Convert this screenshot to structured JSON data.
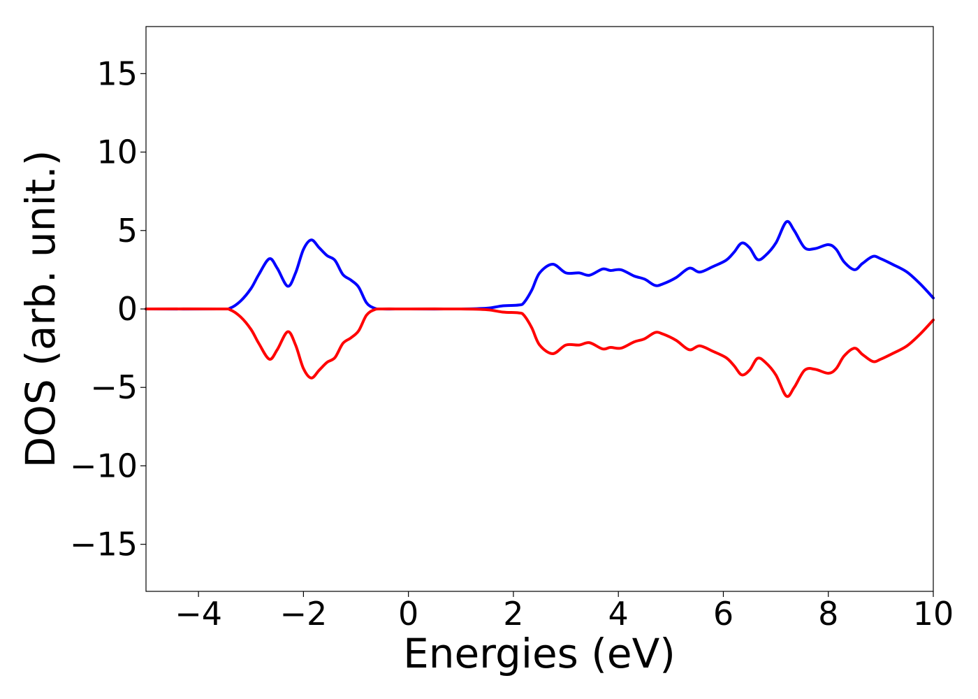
{
  "chart_data": {
    "type": "line",
    "xlabel": "Energies (eV)",
    "ylabel": "DOS (arb. unit.)",
    "xlim": [
      -5,
      10
    ],
    "ylim": [
      -18,
      18
    ],
    "x_ticks": [
      -4,
      -2,
      0,
      2,
      4,
      6,
      8,
      10
    ],
    "x_tick_labels": [
      "−4",
      "−2",
      "0",
      "2",
      "4",
      "6",
      "8",
      "10"
    ],
    "y_ticks": [
      15,
      10,
      5,
      0,
      -5,
      -10,
      -15
    ],
    "y_tick_labels": [
      "15",
      "10",
      "5",
      "0",
      "−5",
      "−10",
      "−15"
    ],
    "grid": false,
    "legend": "none",
    "series": [
      {
        "color": "#0000ff",
        "x": [
          -5.0,
          -3.6,
          -3.4,
          -3.2,
          -3.0,
          -2.85,
          -2.65,
          -2.5,
          -2.3,
          -2.15,
          -2.0,
          -1.85,
          -1.7,
          -1.55,
          -1.4,
          -1.25,
          -1.1,
          -0.95,
          -0.8,
          -0.65,
          -0.5,
          0.0,
          1.0,
          1.5,
          1.8,
          2.1,
          2.2,
          2.35,
          2.5,
          2.75,
          3.0,
          3.25,
          3.45,
          3.7,
          3.85,
          4.05,
          4.3,
          4.5,
          4.7,
          4.85,
          5.1,
          5.35,
          5.55,
          5.8,
          6.05,
          6.2,
          6.35,
          6.5,
          6.65,
          6.8,
          7.0,
          7.2,
          7.35,
          7.55,
          7.75,
          8.0,
          8.15,
          8.3,
          8.5,
          8.65,
          8.85,
          9.0,
          9.25,
          9.5,
          9.75,
          10.0
        ],
        "y": [
          0.0,
          0.0,
          0.05,
          0.5,
          1.3,
          2.2,
          3.2,
          2.6,
          1.45,
          2.3,
          3.8,
          4.4,
          3.9,
          3.4,
          3.1,
          2.2,
          1.85,
          1.4,
          0.4,
          0.05,
          0.0,
          0.0,
          0.0,
          0.05,
          0.2,
          0.25,
          0.4,
          1.2,
          2.3,
          2.85,
          2.3,
          2.3,
          2.15,
          2.55,
          2.45,
          2.5,
          2.1,
          1.9,
          1.5,
          1.6,
          2.0,
          2.6,
          2.35,
          2.7,
          3.1,
          3.6,
          4.2,
          3.9,
          3.15,
          3.4,
          4.2,
          5.55,
          5.0,
          3.9,
          3.85,
          4.1,
          3.8,
          3.0,
          2.5,
          2.9,
          3.35,
          3.2,
          2.8,
          2.35,
          1.6,
          0.7
        ]
      },
      {
        "color": "#ff0000",
        "x": [
          -5.0,
          -3.6,
          -3.4,
          -3.2,
          -3.0,
          -2.85,
          -2.65,
          -2.5,
          -2.3,
          -2.15,
          -2.0,
          -1.85,
          -1.7,
          -1.55,
          -1.4,
          -1.25,
          -1.1,
          -0.95,
          -0.8,
          -0.65,
          -0.5,
          0.0,
          1.0,
          1.5,
          1.8,
          2.1,
          2.2,
          2.35,
          2.5,
          2.75,
          3.0,
          3.25,
          3.45,
          3.7,
          3.85,
          4.05,
          4.3,
          4.5,
          4.7,
          4.85,
          5.1,
          5.35,
          5.55,
          5.8,
          6.05,
          6.2,
          6.35,
          6.5,
          6.65,
          6.8,
          7.0,
          7.2,
          7.35,
          7.55,
          7.75,
          8.0,
          8.15,
          8.3,
          8.5,
          8.65,
          8.85,
          9.0,
          9.25,
          9.5,
          9.75,
          10.0
        ],
        "y": [
          0.0,
          0.0,
          -0.05,
          -0.5,
          -1.3,
          -2.2,
          -3.2,
          -2.6,
          -1.45,
          -2.3,
          -3.8,
          -4.4,
          -3.9,
          -3.4,
          -3.1,
          -2.2,
          -1.85,
          -1.4,
          -0.4,
          -0.05,
          0.0,
          0.0,
          0.0,
          -0.05,
          -0.2,
          -0.25,
          -0.4,
          -1.2,
          -2.3,
          -2.85,
          -2.3,
          -2.3,
          -2.15,
          -2.55,
          -2.45,
          -2.5,
          -2.1,
          -1.9,
          -1.5,
          -1.6,
          -2.0,
          -2.6,
          -2.35,
          -2.7,
          -3.1,
          -3.6,
          -4.2,
          -3.9,
          -3.15,
          -3.4,
          -4.2,
          -5.55,
          -5.0,
          -3.9,
          -3.85,
          -4.1,
          -3.8,
          -3.0,
          -2.5,
          -2.9,
          -3.35,
          -3.2,
          -2.8,
          -2.35,
          -1.6,
          -0.7
        ]
      }
    ]
  }
}
